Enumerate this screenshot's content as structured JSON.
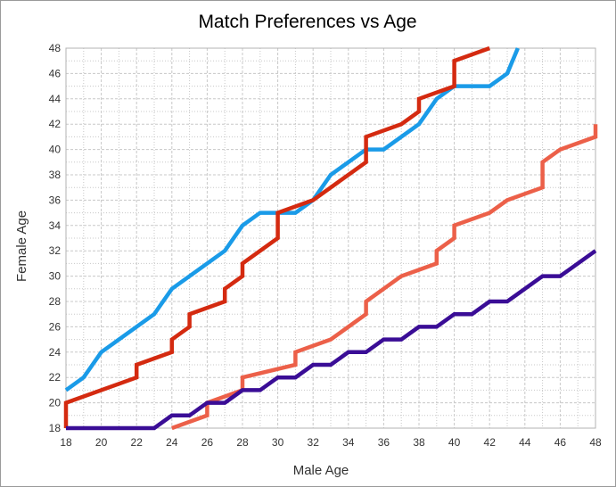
{
  "chart_data": {
    "type": "line",
    "title": "Match Preferences vs Age",
    "xlabel": "Male Age",
    "ylabel": "Female Age",
    "xlim": [
      18,
      48
    ],
    "ylim": [
      18,
      48
    ],
    "xticks": [
      18,
      20,
      22,
      24,
      26,
      28,
      30,
      32,
      34,
      36,
      38,
      40,
      42,
      44,
      46,
      48
    ],
    "yticks": [
      18,
      20,
      22,
      24,
      26,
      28,
      30,
      32,
      34,
      36,
      38,
      40,
      42,
      44,
      46,
      48
    ],
    "minor_grid_step": 1,
    "grid": true,
    "legend": false,
    "series": [
      {
        "color": "#1a9be8",
        "points": [
          [
            18,
            21
          ],
          [
            19,
            22
          ],
          [
            20,
            24
          ],
          [
            23,
            27
          ],
          [
            24,
            29
          ],
          [
            27,
            32
          ],
          [
            28,
            34
          ],
          [
            29,
            35
          ],
          [
            31,
            35
          ],
          [
            32,
            36
          ],
          [
            33,
            38
          ],
          [
            34,
            39
          ],
          [
            35,
            40
          ],
          [
            36,
            40
          ],
          [
            38,
            42
          ],
          [
            39,
            44
          ],
          [
            40,
            45
          ],
          [
            42,
            45
          ],
          [
            43,
            46
          ],
          [
            43.6,
            48
          ]
        ]
      },
      {
        "color": "#d42a10",
        "points": [
          [
            18,
            18
          ],
          [
            18,
            20
          ],
          [
            22,
            22
          ],
          [
            22,
            23
          ],
          [
            24,
            24
          ],
          [
            24,
            25
          ],
          [
            25,
            26
          ],
          [
            25,
            27
          ],
          [
            27,
            28
          ],
          [
            27,
            29
          ],
          [
            28,
            30
          ],
          [
            28,
            31
          ],
          [
            30,
            33
          ],
          [
            30,
            35
          ],
          [
            32,
            36
          ],
          [
            35,
            39
          ],
          [
            35,
            41
          ],
          [
            37,
            42
          ],
          [
            38,
            43
          ],
          [
            38,
            44
          ],
          [
            40,
            45
          ],
          [
            40,
            47
          ],
          [
            42,
            48
          ]
        ]
      },
      {
        "color": "#ec6049",
        "points": [
          [
            24,
            18
          ],
          [
            26,
            19
          ],
          [
            26,
            20
          ],
          [
            28,
            21
          ],
          [
            28,
            22
          ],
          [
            31,
            23
          ],
          [
            31,
            24
          ],
          [
            33,
            25
          ],
          [
            35,
            27
          ],
          [
            35,
            28
          ],
          [
            37,
            30
          ],
          [
            39,
            31
          ],
          [
            39,
            32
          ],
          [
            40,
            33
          ],
          [
            40,
            34
          ],
          [
            42,
            35
          ],
          [
            43,
            36
          ],
          [
            45,
            37
          ],
          [
            45,
            39
          ],
          [
            46,
            40
          ],
          [
            48,
            41
          ],
          [
            48,
            42
          ]
        ]
      },
      {
        "color": "#3a0d96",
        "points": [
          [
            18,
            18
          ],
          [
            23,
            18
          ],
          [
            24,
            19
          ],
          [
            25,
            19
          ],
          [
            26,
            20
          ],
          [
            27,
            20
          ],
          [
            28,
            21
          ],
          [
            29,
            21
          ],
          [
            30,
            22
          ],
          [
            31,
            22
          ],
          [
            32,
            23
          ],
          [
            33,
            23
          ],
          [
            34,
            24
          ],
          [
            35,
            24
          ],
          [
            36,
            25
          ],
          [
            37,
            25
          ],
          [
            38,
            26
          ],
          [
            39,
            26
          ],
          [
            40,
            27
          ],
          [
            41,
            27
          ],
          [
            42,
            28
          ],
          [
            43,
            28
          ],
          [
            45,
            30
          ],
          [
            46,
            30
          ],
          [
            48,
            32
          ]
        ]
      }
    ]
  }
}
